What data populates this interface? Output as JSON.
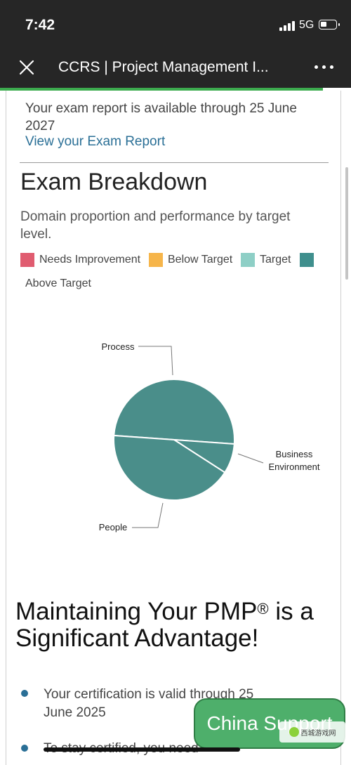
{
  "status_bar": {
    "time": "7:42",
    "network": "5G"
  },
  "nav": {
    "title": "CCRS | Project Management I..."
  },
  "report": {
    "text": "Your exam report is available through 25 June 2027",
    "link": "View your Exam Report"
  },
  "breakdown": {
    "title": "Exam Breakdown",
    "subtitle": "Domain proportion and performance by target level."
  },
  "legend": [
    {
      "label": "Needs Improvement",
      "color": "#e05c70"
    },
    {
      "label": "Below Target",
      "color": "#f6b54a"
    },
    {
      "label": "Target",
      "color": "#8ecfc6"
    },
    {
      "label": "Above Target",
      "color": "#3f8f8d"
    }
  ],
  "chart_data": {
    "type": "pie",
    "title": "",
    "slices": [
      {
        "label": "Process",
        "value": 50,
        "level": "Above Target",
        "color": "#4a8e8a"
      },
      {
        "label": "Business Environment",
        "value": 8,
        "level": "Above Target",
        "color": "#4a8e8a"
      },
      {
        "label": "People",
        "value": 42,
        "level": "Above Target",
        "color": "#4a8e8a"
      }
    ],
    "legend_placement": "top"
  },
  "maintain": {
    "title_before": "Maintaining Your PMP",
    "title_sup": "®",
    "title_after": " is a Significant Advantage!"
  },
  "bullets": [
    "Your certification is valid through 25 June 2025",
    "To stay certified, you need"
  ],
  "support_button": "China Support",
  "watermark": "西城游戏网"
}
